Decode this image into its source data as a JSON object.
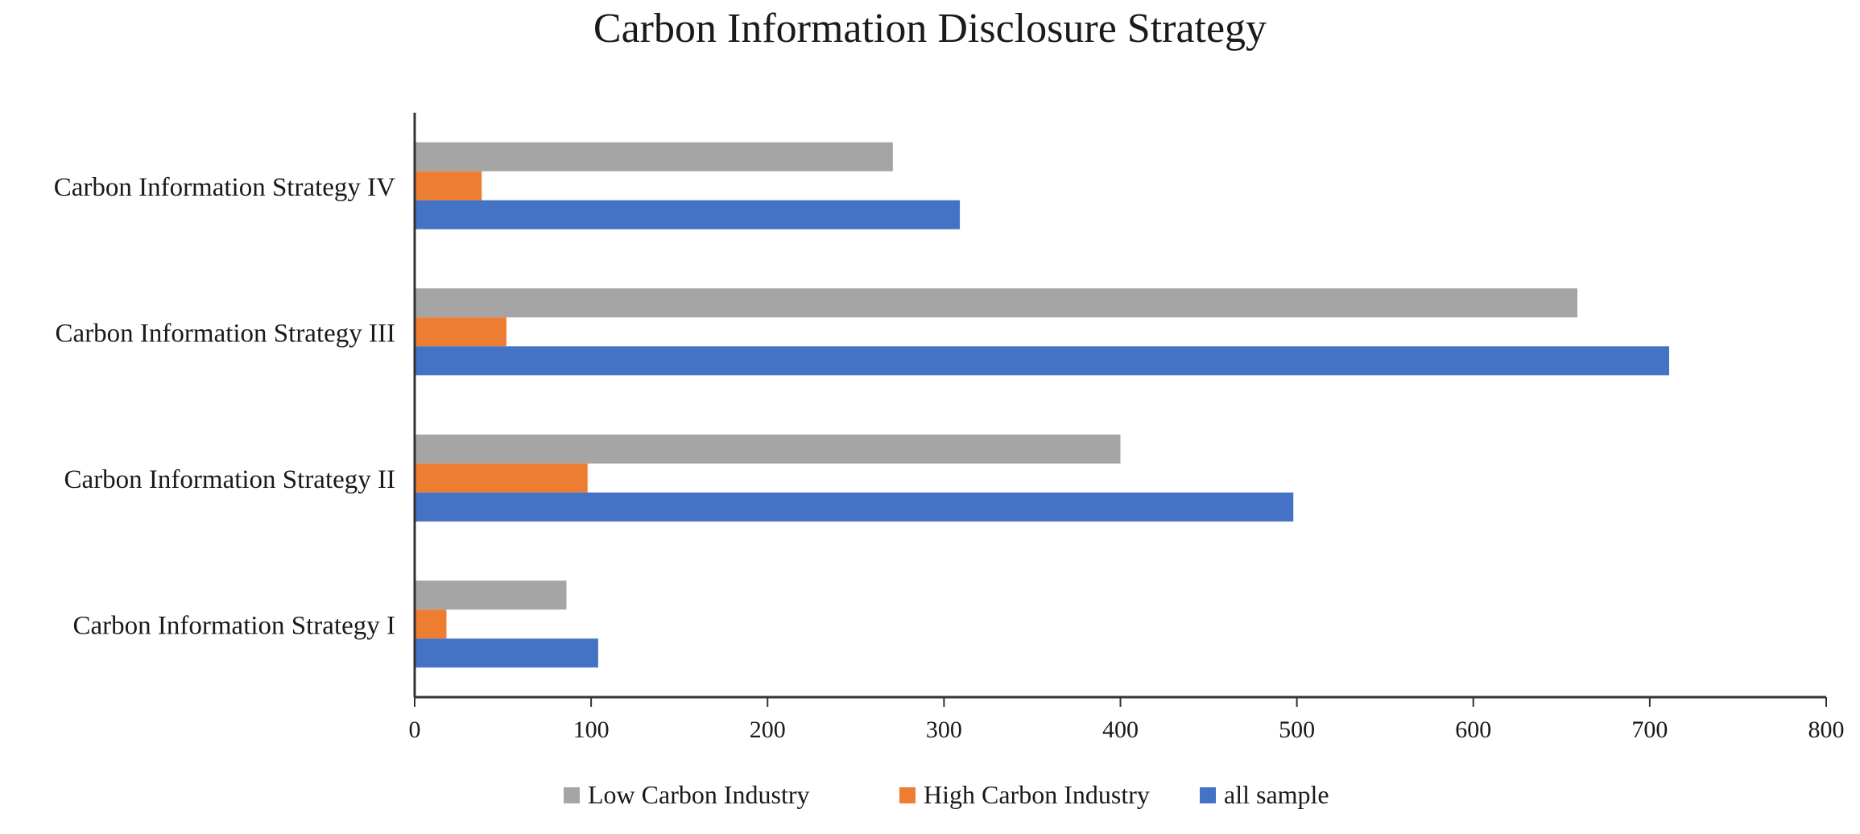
{
  "chart_data": {
    "type": "bar",
    "orientation": "horizontal",
    "title": "Carbon Information Disclosure Strategy",
    "categories": [
      "Carbon Information Strategy I",
      "Carbon Information Strategy II",
      "Carbon Information Strategy III",
      "Carbon Information Strategy IV"
    ],
    "series": [
      {
        "name": "Low Carbon Industry",
        "color": "#a5a5a5",
        "values": [
          86,
          400,
          659,
          271
        ]
      },
      {
        "name": "High Carbon Industry",
        "color": "#ed7d31",
        "values": [
          18,
          98,
          52,
          38
        ]
      },
      {
        "name": "all sample",
        "color": "#4472c4",
        "values": [
          104,
          498,
          711,
          309
        ]
      }
    ],
    "xlim": [
      0,
      800
    ],
    "xticks": [
      0,
      100,
      200,
      300,
      400,
      500,
      600,
      700,
      800
    ],
    "grid": false,
    "legend_position": "bottom"
  }
}
